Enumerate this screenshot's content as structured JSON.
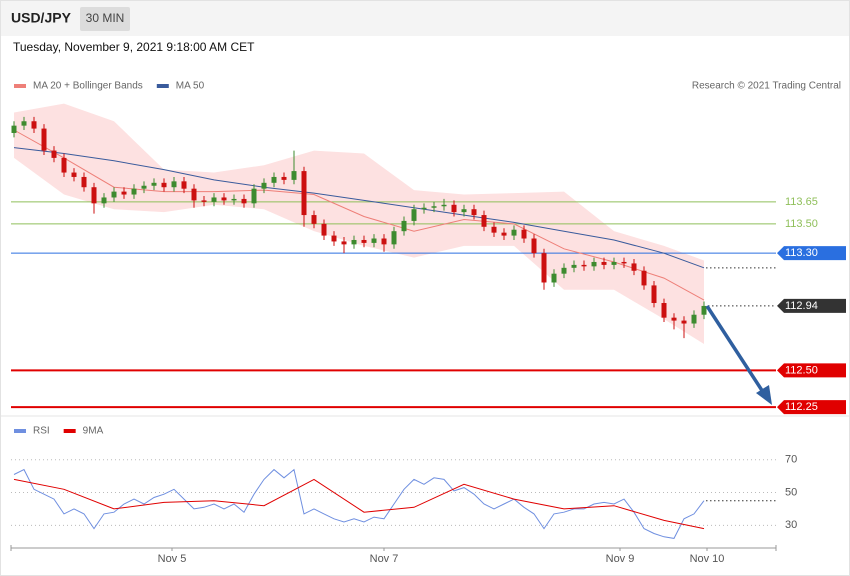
{
  "header": {
    "symbol": "USD/JPY",
    "timeframe": "30 MIN",
    "timestamp": "Tuesday, November 9, 2021 9:18:00 AM CET",
    "credit": "Research © 2021 Trading Central"
  },
  "chart_data": [
    {
      "type": "candlestick",
      "xlim": [
        -0.3,
        76.2
      ],
      "ylim": [
        112.23,
        114.345
      ],
      "up_color": "#3d8b2f",
      "down_color": "#cc1010",
      "open": [
        114.12,
        114.17,
        114.2,
        114.15,
        114.0,
        113.95,
        113.85,
        113.82,
        113.75,
        113.64,
        113.68,
        113.72,
        113.7,
        113.74,
        113.76,
        113.78,
        113.75,
        113.79,
        113.74,
        113.66,
        113.65,
        113.68,
        113.66,
        113.67,
        113.64,
        113.74,
        113.78,
        113.82,
        113.8,
        113.86,
        113.56,
        113.5,
        113.42,
        113.38,
        113.36,
        113.39,
        113.37,
        113.4,
        113.36,
        113.45,
        113.52,
        113.6,
        113.61,
        113.62,
        113.63,
        113.58,
        113.6,
        113.56,
        113.48,
        113.44,
        113.42,
        113.46,
        113.4,
        113.3,
        113.1,
        113.16,
        113.2,
        113.22,
        113.21,
        113.24,
        113.22,
        113.24,
        113.23,
        113.18,
        113.08,
        112.96,
        112.86,
        112.84,
        112.82,
        112.88
      ],
      "high": [
        114.2,
        114.23,
        114.23,
        114.18,
        114.03,
        113.98,
        113.88,
        113.85,
        113.78,
        113.71,
        113.75,
        113.75,
        113.77,
        113.79,
        113.81,
        113.81,
        113.82,
        113.82,
        113.77,
        113.69,
        113.71,
        113.71,
        113.7,
        113.7,
        113.77,
        113.81,
        113.85,
        113.85,
        114.0,
        113.89,
        113.59,
        113.53,
        113.45,
        113.41,
        113.42,
        113.42,
        113.43,
        113.43,
        113.48,
        113.55,
        113.63,
        113.64,
        113.65,
        113.67,
        113.66,
        113.63,
        113.63,
        113.59,
        113.51,
        113.47,
        113.49,
        113.49,
        113.43,
        113.33,
        113.19,
        113.23,
        113.25,
        113.25,
        113.27,
        113.27,
        113.27,
        113.27,
        113.26,
        113.21,
        113.11,
        112.99,
        112.89,
        112.87,
        112.91,
        112.97
      ],
      "low": [
        114.09,
        114.14,
        114.12,
        113.97,
        113.92,
        113.82,
        113.79,
        113.72,
        113.57,
        113.61,
        113.65,
        113.67,
        113.67,
        113.71,
        113.73,
        113.72,
        113.72,
        113.71,
        113.61,
        113.62,
        113.62,
        113.63,
        113.63,
        113.61,
        113.61,
        113.71,
        113.75,
        113.77,
        113.77,
        113.48,
        113.47,
        113.39,
        113.35,
        113.3,
        113.33,
        113.34,
        113.34,
        113.31,
        113.33,
        113.42,
        113.49,
        113.57,
        113.58,
        113.59,
        113.55,
        113.55,
        113.53,
        113.45,
        113.41,
        113.39,
        113.39,
        113.37,
        113.27,
        113.05,
        113.07,
        113.13,
        113.17,
        113.18,
        113.18,
        113.19,
        113.19,
        113.2,
        113.15,
        113.05,
        112.93,
        112.83,
        112.78,
        112.72,
        112.79,
        112.85
      ],
      "close": [
        114.17,
        114.2,
        114.15,
        114.0,
        113.95,
        113.85,
        113.82,
        113.75,
        113.64,
        113.68,
        113.72,
        113.7,
        113.74,
        113.76,
        113.78,
        113.75,
        113.79,
        113.74,
        113.66,
        113.65,
        113.68,
        113.66,
        113.67,
        113.64,
        113.74,
        113.78,
        113.82,
        113.8,
        113.86,
        113.56,
        113.5,
        113.42,
        113.38,
        113.36,
        113.39,
        113.37,
        113.4,
        113.36,
        113.45,
        113.52,
        113.6,
        113.61,
        113.62,
        113.63,
        113.58,
        113.6,
        113.56,
        113.48,
        113.44,
        113.42,
        113.46,
        113.4,
        113.3,
        113.1,
        113.16,
        113.2,
        113.22,
        113.21,
        113.24,
        113.22,
        113.24,
        113.23,
        113.18,
        113.08,
        112.96,
        112.86,
        112.84,
        112.82,
        112.88,
        112.94
      ],
      "series": [
        {
          "name": "MA 20 + Bollinger Bands",
          "color": "#ee7f78",
          "band_color": "#fde1e1",
          "x": [
            0,
            5,
            10,
            15,
            20,
            25,
            30,
            35,
            40,
            45,
            50,
            55,
            60,
            65,
            69
          ],
          "values": [
            114.14,
            113.95,
            113.75,
            113.72,
            113.72,
            113.73,
            113.7,
            113.55,
            113.45,
            113.53,
            113.5,
            113.33,
            113.24,
            113.13,
            112.98
          ],
          "upper": [
            114.26,
            114.32,
            114.2,
            113.87,
            113.85,
            113.9,
            114.0,
            113.98,
            113.73,
            113.7,
            113.71,
            113.72,
            113.45,
            113.35,
            113.25
          ],
          "lower": [
            113.95,
            113.7,
            113.6,
            113.58,
            113.63,
            113.6,
            113.45,
            113.35,
            113.27,
            113.35,
            113.35,
            113.05,
            113.05,
            112.85,
            112.68
          ]
        },
        {
          "name": "MA 50",
          "color": "#3a5b9c",
          "x": [
            0,
            5,
            10,
            15,
            20,
            25,
            30,
            35,
            40,
            45,
            50,
            55,
            60,
            65,
            69
          ],
          "values": [
            114.02,
            113.98,
            113.93,
            113.87,
            113.8,
            113.75,
            113.71,
            113.66,
            113.61,
            113.56,
            113.51,
            113.45,
            113.39,
            113.3,
            113.2
          ]
        }
      ],
      "levels": [
        {
          "value": 113.65,
          "label": "113.65",
          "color": "#8fbf5a",
          "tag": false,
          "dotted": false,
          "line_width": 1
        },
        {
          "value": 113.5,
          "label": "113.50",
          "color": "#8fbf5a",
          "tag": false,
          "dotted": false,
          "line_width": 1
        },
        {
          "value": 113.3,
          "label": "113.30",
          "color": "#2a6fe0",
          "tag": true,
          "dotted": false,
          "line_width": 1
        },
        {
          "value": 112.94,
          "label": "112.94",
          "color": "#333333",
          "tag": true,
          "dotted": true,
          "line_width": 1
        },
        {
          "value": 112.5,
          "label": "112.50",
          "color": "#e00000",
          "tag": true,
          "dotted": false,
          "line_width": 2
        },
        {
          "value": 112.25,
          "label": "112.25",
          "color": "#e00000",
          "tag": true,
          "dotted": false,
          "line_width": 2
        }
      ]
    },
    {
      "type": "line",
      "xlim": [
        -0.3,
        76.2
      ],
      "ylim": [
        18,
        79
      ],
      "yticks": [
        70,
        50,
        30
      ],
      "xticks": [
        {
          "value": 15.8,
          "label": "Nov 5"
        },
        {
          "value": 37,
          "label": "Nov 7"
        },
        {
          "value": 60.6,
          "label": "Nov 9"
        },
        {
          "value": 69.3,
          "label": "Nov 10"
        }
      ],
      "series": [
        {
          "name": "RSI",
          "color": "#6f8fe0",
          "values": [
            61,
            64,
            52,
            49,
            46,
            37,
            40,
            37,
            28,
            37,
            38,
            43,
            46,
            43,
            47,
            49,
            52,
            46,
            40,
            41,
            43,
            40,
            43,
            38,
            49,
            58,
            64,
            59,
            64,
            37,
            40,
            37,
            34,
            32,
            34,
            32,
            35,
            34,
            43,
            52,
            58,
            55,
            59,
            58,
            51,
            53,
            49,
            43,
            40,
            43,
            46,
            41,
            37,
            28,
            37,
            38,
            40,
            40,
            43,
            44,
            43,
            46,
            38,
            28,
            25,
            23,
            22,
            34,
            37,
            45
          ]
        },
        {
          "name": "9MA",
          "color": "#e00000",
          "x": [
            0,
            5,
            10,
            15,
            20,
            25,
            30,
            35,
            40,
            45,
            50,
            55,
            60,
            65,
            69
          ],
          "values": [
            58,
            52,
            40,
            44,
            45,
            42,
            58,
            38,
            41,
            55,
            46,
            40,
            42,
            33,
            28
          ]
        }
      ]
    }
  ]
}
